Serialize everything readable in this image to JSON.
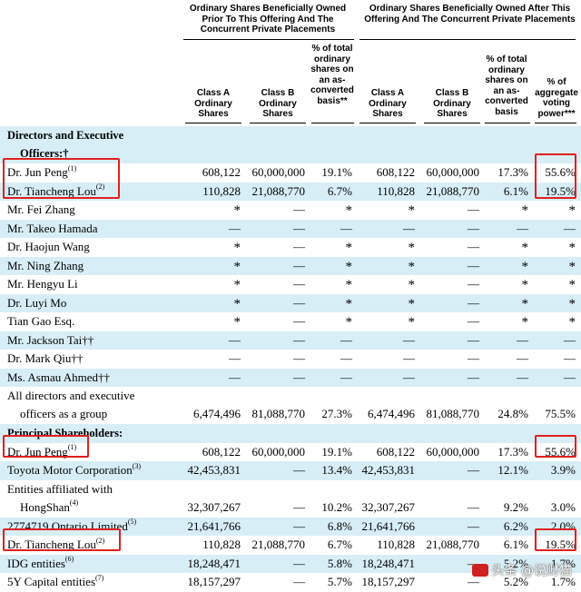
{
  "group_headers": {
    "prior": "Ordinary Shares Beneficially Owned Prior To This Offering And The Concurrent Private Placements",
    "after": "Ordinary Shares Beneficially Owned After This Offering And The Concurrent Private Placements"
  },
  "columns": {
    "class_a": "Class A Ordinary Shares",
    "class_b": "Class B Ordinary Shares",
    "pct_prior": "% of total ordinary shares on an as-converted basis**",
    "class_a_after": "Class A Ordinary Shares",
    "class_b_after": "Class B Ordinary Shares",
    "pct_after": "% of total ordinary shares on an as-converted basis",
    "voting": "% of aggregate voting power***"
  },
  "rows": [
    {
      "kind": "section",
      "label1": "Directors and Executive",
      "label2": "Officers:†"
    },
    {
      "kind": "data",
      "name": "Dr. Jun Peng",
      "note": "(1)",
      "a": "608,122",
      "b": "60,000,000",
      "p": "19.1%",
      "a2": "608,122",
      "b2": "60,000,000",
      "p2": "17.3%",
      "v": "55.6%"
    },
    {
      "kind": "data",
      "name": "Dr. Tiancheng Lou",
      "note": "(2)",
      "a": "110,828",
      "b": "21,088,770",
      "p": "6.7%",
      "a2": "110,828",
      "b2": "21,088,770",
      "p2": "6.1%",
      "v": "19.5%"
    },
    {
      "kind": "data",
      "name": "Mr. Fei Zhang",
      "note": "",
      "a": "*",
      "b": "—",
      "p": "*",
      "a2": "*",
      "b2": "—",
      "p2": "*",
      "v": "*"
    },
    {
      "kind": "data",
      "name": "Mr. Takeo Hamada",
      "note": "",
      "a": "—",
      "b": "—",
      "p": "—",
      "a2": "—",
      "b2": "—",
      "p2": "—",
      "v": "—"
    },
    {
      "kind": "data",
      "name": "Dr. Haojun Wang",
      "note": "",
      "a": "*",
      "b": "—",
      "p": "*",
      "a2": "*",
      "b2": "—",
      "p2": "*",
      "v": "*"
    },
    {
      "kind": "data",
      "name": "Mr. Ning Zhang",
      "note": "",
      "a": "*",
      "b": "—",
      "p": "*",
      "a2": "*",
      "b2": "—",
      "p2": "*",
      "v": "*"
    },
    {
      "kind": "data",
      "name": "Mr. Hengyu Li",
      "note": "",
      "a": "*",
      "b": "—",
      "p": "*",
      "a2": "*",
      "b2": "—",
      "p2": "*",
      "v": "*"
    },
    {
      "kind": "data",
      "name": "Dr. Luyi Mo",
      "note": "",
      "a": "*",
      "b": "—",
      "p": "*",
      "a2": "*",
      "b2": "—",
      "p2": "*",
      "v": "*"
    },
    {
      "kind": "data",
      "name": "Tian Gao Esq.",
      "note": "",
      "a": "*",
      "b": "—",
      "p": "*",
      "a2": "*",
      "b2": "—",
      "p2": "*",
      "v": "*"
    },
    {
      "kind": "data",
      "name": "Mr. Jackson Tai††",
      "note": "",
      "a": "—",
      "b": "—",
      "p": "—",
      "a2": "—",
      "b2": "—",
      "p2": "—",
      "v": "—"
    },
    {
      "kind": "data",
      "name": "Dr. Mark Qiu††",
      "note": "",
      "a": "—",
      "b": "—",
      "p": "—",
      "a2": "—",
      "b2": "—",
      "p2": "—",
      "v": "—"
    },
    {
      "kind": "data",
      "name": "Ms. Asmau Ahmed††",
      "note": "",
      "a": "—",
      "b": "—",
      "p": "—",
      "a2": "—",
      "b2": "—",
      "p2": "—",
      "v": "—"
    },
    {
      "kind": "total",
      "name1": "All directors and executive",
      "name2": "officers as a group",
      "a": "6,474,496",
      "b": "81,088,770",
      "p": "27.3%",
      "a2": "6,474,496",
      "b2": "81,088,770",
      "p2": "24.8%",
      "v": "75.5%"
    },
    {
      "kind": "section1",
      "label1": "Principal Shareholders:"
    },
    {
      "kind": "data",
      "name": "Dr. Jun Peng",
      "note": "(1)",
      "a": "608,122",
      "b": "60,000,000",
      "p": "19.1%",
      "a2": "608,122",
      "b2": "60,000,000",
      "p2": "17.3%",
      "v": "55.6%"
    },
    {
      "kind": "data",
      "name": "Toyota Motor Corporation",
      "note": "(3)",
      "a": "42,453,831",
      "b": "—",
      "p": "13.4%",
      "a2": "42,453,831",
      "b2": "—",
      "p2": "12.1%",
      "v": "3.9%"
    },
    {
      "kind": "total",
      "name1": "Entities affiliated with",
      "name2": "HongShan",
      "note2": "(4)",
      "a": "32,307,267",
      "b": "—",
      "p": "10.2%",
      "a2": "32,307,267",
      "b2": "—",
      "p2": "9.2%",
      "v": "3.0%"
    },
    {
      "kind": "data",
      "name": "2774719 Ontario Limited",
      "note": "(5)",
      "a": "21,641,766",
      "b": "—",
      "p": "6.8%",
      "a2": "21,641,766",
      "b2": "—",
      "p2": "6.2%",
      "v": "2.0%"
    },
    {
      "kind": "data",
      "name": "Dr. Tiancheng Lou",
      "note": "(2)",
      "a": "110,828",
      "b": "21,088,770",
      "p": "6.7%",
      "a2": "110,828",
      "b2": "21,088,770",
      "p2": "6.1%",
      "v": "19.5%"
    },
    {
      "kind": "data",
      "name": "IDG entities",
      "note": "(6)",
      "a": "18,248,471",
      "b": "—",
      "p": "5.8%",
      "a2": "18,248,471",
      "b2": "—",
      "p2": "5.2%",
      "v": "1.7%"
    },
    {
      "kind": "data",
      "name": "5Y Capital entities",
      "note": "(7)",
      "a": "18,157,297",
      "b": "—",
      "p": "5.7%",
      "a2": "18,157,297",
      "b2": "—",
      "p2": "5.2%",
      "v": "1.7%"
    }
  ],
  "watermark": {
    "text": "头条 @说财猫",
    "brand_color": "#d02020"
  },
  "highlight_color": "#e02020"
}
